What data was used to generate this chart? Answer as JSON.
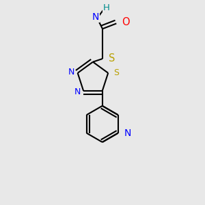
{
  "bg_color": "#e8e8e8",
  "black": "#000000",
  "blue": "#0000ff",
  "teal": "#008b8b",
  "red": "#ff0000",
  "yellow": "#b8a000",
  "bond_lw": 1.5,
  "fig_size": [
    3.0,
    3.0
  ],
  "dpi": 100,
  "xlim": [
    0.15,
    0.85
  ],
  "ylim": [
    0.02,
    0.98
  ]
}
